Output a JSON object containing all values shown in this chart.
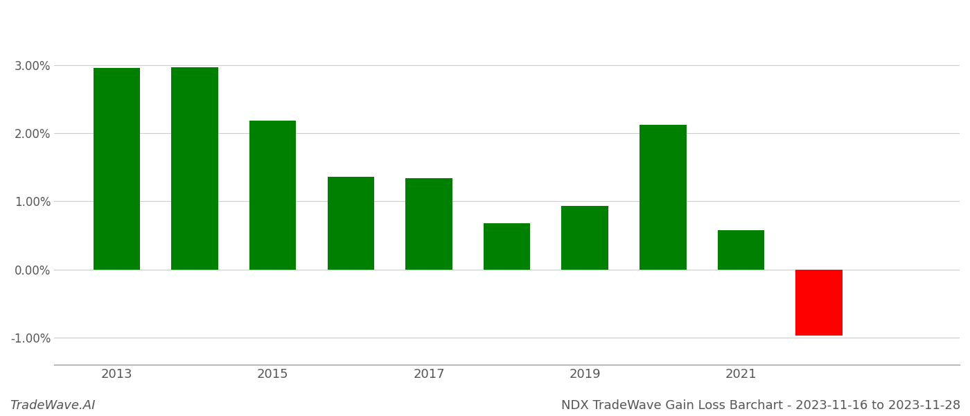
{
  "years": [
    2013,
    2014,
    2015,
    2016,
    2017,
    2018,
    2019,
    2020,
    2021,
    2022
  ],
  "values": [
    0.0296,
    0.0297,
    0.0218,
    0.0136,
    0.0134,
    0.0068,
    0.0093,
    0.0212,
    0.0058,
    -0.0097
  ],
  "bar_colors": [
    "#008000",
    "#008000",
    "#008000",
    "#008000",
    "#008000",
    "#008000",
    "#008000",
    "#008000",
    "#008000",
    "#ff0000"
  ],
  "title": "NDX TradeWave Gain Loss Barchart - 2023-11-16 to 2023-11-28",
  "watermark": "TradeWave.AI",
  "ylim": [
    -0.014,
    0.038
  ],
  "yticks": [
    -0.01,
    0.0,
    0.01,
    0.02,
    0.03
  ],
  "background_color": "#ffffff",
  "grid_color": "#cccccc",
  "title_fontsize": 13,
  "watermark_fontsize": 13,
  "bar_width": 0.6
}
